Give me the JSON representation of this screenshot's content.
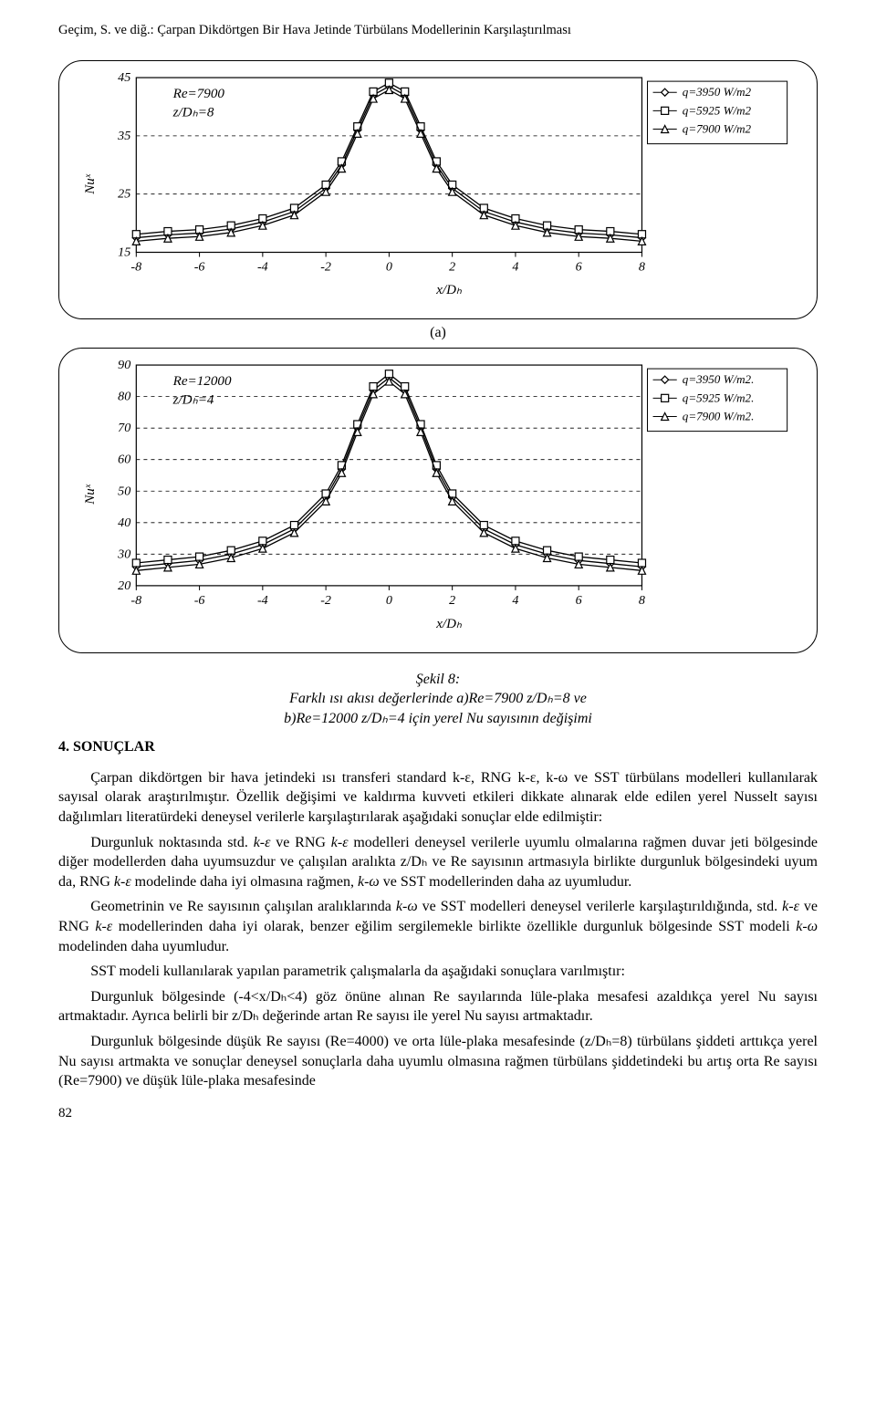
{
  "running_head": "Geçim, S. ve diğ.: Çarpan Dikdörtgen Bir Hava Jetinde Türbülans Modellerinin Karşılaştırılması",
  "chart_a": {
    "type": "line",
    "params_lines": [
      "Re=7900",
      "z/Dₕ=8"
    ],
    "ylabel": "Nuˣ",
    "xlabel": "x/Dₕ",
    "xlim": [
      -8,
      8
    ],
    "xtick_step": 2,
    "ylim": [
      15,
      45
    ],
    "ytick_step": 10,
    "background_color": "#ffffff",
    "grid_color": "#000000",
    "grid_dash": "4 4",
    "axis_color": "#000000",
    "series": [
      {
        "label": "q=3950 W/m2",
        "marker": "diamond",
        "color": "#000000"
      },
      {
        "label": "q=5925 W/m2",
        "marker": "square",
        "color": "#000000"
      },
      {
        "label": "q=7900 W/m2",
        "marker": "triangle",
        "color": "#000000"
      }
    ],
    "x": [
      -8,
      -7,
      -6,
      -5,
      -4,
      -3,
      -2,
      -1.5,
      -1,
      -0.5,
      0,
      0.5,
      1,
      1.5,
      2,
      3,
      4,
      5,
      6,
      7,
      8
    ],
    "y_all": [
      17.5,
      18,
      18.3,
      19,
      20.2,
      22,
      26,
      30,
      36,
      42,
      43.5,
      42,
      36,
      30,
      26,
      22,
      20.2,
      19,
      18.3,
      18,
      17.5
    ],
    "y_off2": 0.6,
    "y_off3": -0.6
  },
  "chart_b": {
    "type": "line",
    "params_lines": [
      "Re=12000",
      "z/Dₕ=4"
    ],
    "ylabel": "Nuˣ",
    "xlabel": "x/Dₕ",
    "xlim": [
      -8,
      8
    ],
    "xtick_step": 2,
    "ylim": [
      20,
      90
    ],
    "ytick_step": 10,
    "background_color": "#ffffff",
    "grid_color": "#000000",
    "grid_dash": "4 4",
    "axis_color": "#000000",
    "series": [
      {
        "label": "q=3950 W/m2.",
        "marker": "diamond",
        "color": "#000000"
      },
      {
        "label": "q=5925 W/m2.",
        "marker": "square",
        "color": "#000000"
      },
      {
        "label": "q=7900 W/m2.",
        "marker": "triangle",
        "color": "#000000"
      }
    ],
    "x": [
      -8,
      -7,
      -6,
      -5,
      -4,
      -3,
      -2,
      -1.5,
      -1,
      -0.5,
      0,
      0.5,
      1,
      1.5,
      2,
      3,
      4,
      5,
      6,
      7,
      8
    ],
    "y_all": [
      26,
      27,
      28,
      30,
      33,
      38,
      48,
      57,
      70,
      82,
      86,
      82,
      70,
      57,
      48,
      38,
      33,
      30,
      28,
      27,
      26
    ],
    "y_off2": 1.2,
    "y_off3": -1.2
  },
  "sublabel_a": "(a)",
  "caption": {
    "l1": "Şekil 8:",
    "l2": "Farklı ısı akısı değerlerinde a)Re=7900 z/Dₕ=8 ve",
    "l3": "b)Re=12000 z/Dₕ=4 için yerel Nu sayısının değişimi"
  },
  "section_head": "4. SONUÇLAR",
  "paras": {
    "p1": "Çarpan dikdörtgen bir hava jetindeki ısı transferi standard k-ε, RNG k-ε, k-ω ve SST türbülans modelleri kullanılarak sayısal olarak araştırılmıştır. Özellik değişimi ve kaldırma kuvveti etkileri dikkate alınarak elde edilen yerel Nusselt sayısı dağılımları literatürdeki deneysel verilerle karşılaştırılarak aşağıdaki sonuçlar elde edilmiştir:",
    "p2a": "Durgunluk noktasında std. ",
    "p2b": "k-ε",
    "p2c": " ve RNG ",
    "p2d": "k-ε",
    "p2e": " modelleri deneysel verilerle uyumlu olmalarına rağmen duvar jeti bölgesinde diğer modellerden daha uyumsuzdur ve çalışılan aralıkta z/Dₕ ve Re sayısının artmasıyla birlikte durgunluk bölgesindeki uyum da, RNG ",
    "p2f": "k-ε",
    "p2g": " modelinde daha iyi olmasına rağmen, ",
    "p2h": "k-ω",
    "p2i": " ve SST modellerinden daha az uyumludur.",
    "p3a": "Geometrinin ve Re sayısının çalışılan aralıklarında ",
    "p3b": "k-ω",
    "p3c": " ve SST modelleri deneysel verilerle karşılaştırıldığında, std. ",
    "p3d": "k-ε",
    "p3e": " ve RNG ",
    "p3f": "k-ε",
    "p3g": " modellerinden daha iyi olarak, benzer eğilim sergilemekle birlikte özellikle durgunluk bölgesinde SST modeli ",
    "p3h": "k-ω",
    "p3i": " modelinden daha uyumludur.",
    "p4": "SST modeli kullanılarak yapılan parametrik çalışmalarla da aşağıdaki sonuçlara varılmıştır:",
    "p5": "Durgunluk bölgesinde (-4<x/Dₕ<4) göz önüne alınan Re sayılarında lüle-plaka mesafesi azaldıkça yerel Nu sayısı artmaktadır. Ayrıca belirli bir z/Dₕ değerinde artan Re sayısı ile yerel Nu sayısı artmaktadır.",
    "p6": "Durgunluk bölgesinde düşük Re sayısı (Re=4000) ve orta lüle-plaka mesafesinde (z/Dₕ=8) türbülans şiddeti arttıkça yerel Nu sayısı artmakta ve sonuçlar deneysel sonuçlarla daha uyumlu olmasına rağmen türbülans şiddetindeki bu artış orta Re sayısı (Re=7900) ve düşük lüle-plaka mesafesinde"
  },
  "page_number": "82"
}
